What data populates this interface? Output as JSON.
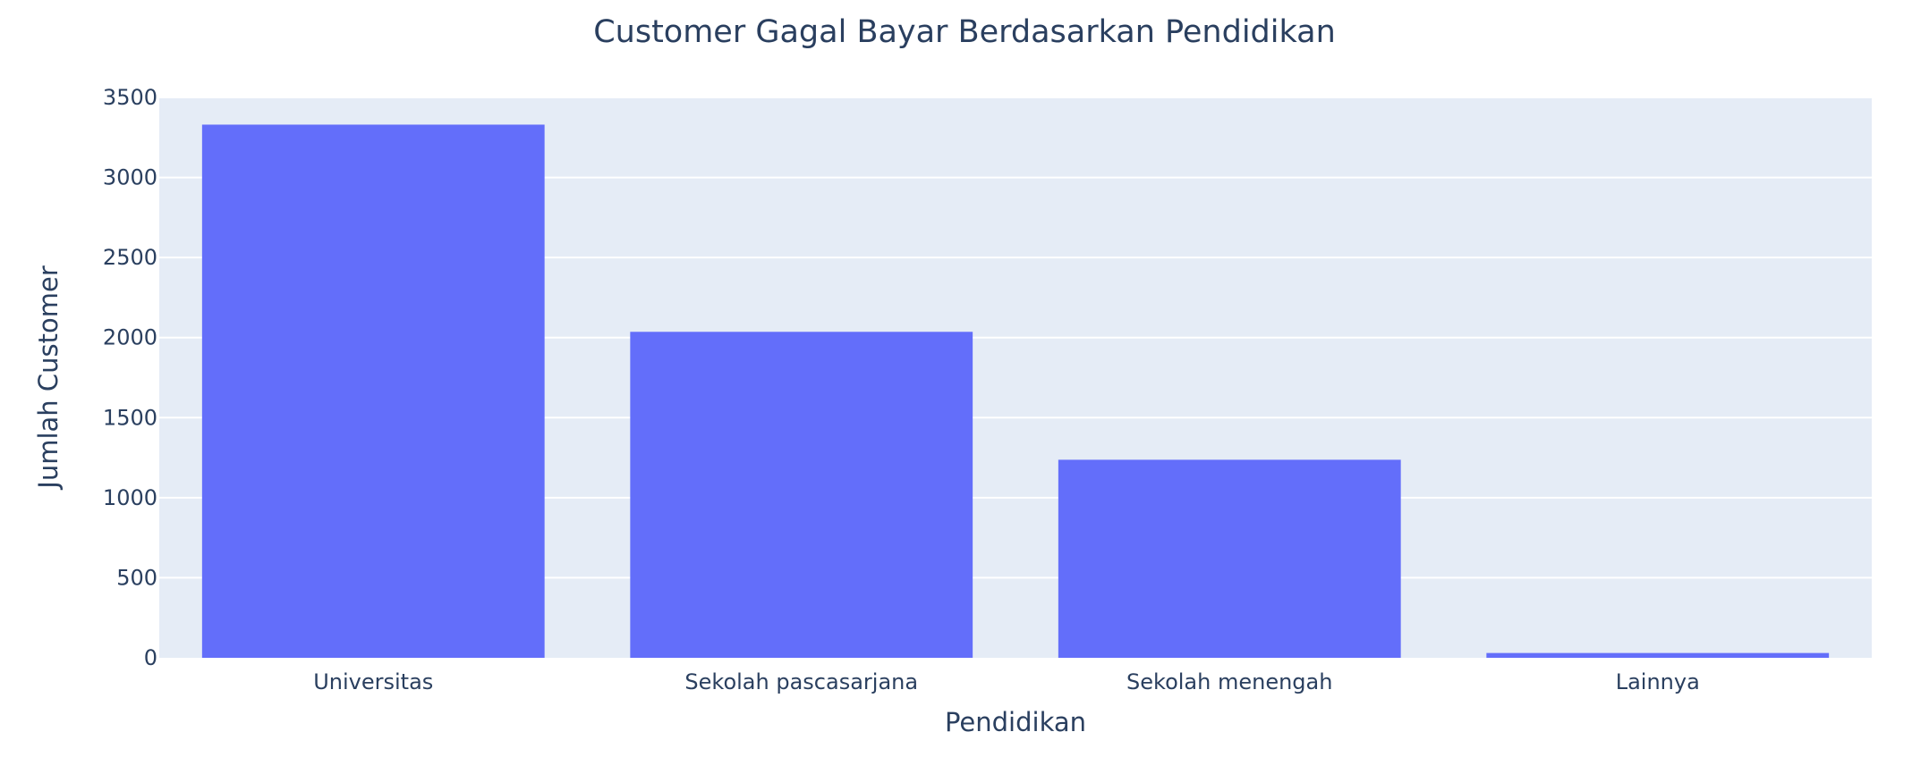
{
  "chart_data": {
    "type": "bar",
    "title": "Customer Gagal Bayar Berdasarkan Pendidikan",
    "xlabel": "Pendidikan",
    "ylabel": "Jumlah Customer",
    "categories": [
      "Universitas",
      "Sekolah pascasarjana",
      "Sekolah menengah",
      "Lainnya"
    ],
    "values": [
      3330,
      2036,
      1237,
      30
    ],
    "ylim": [
      0,
      3500
    ],
    "yticks": [
      0,
      500,
      1000,
      1500,
      2000,
      2500,
      3000,
      3500
    ],
    "grid": true,
    "colors": {
      "bar": "#636efa",
      "plot_bg": "#e5ecf6",
      "grid": "#ffffff",
      "text": "#2a3f5f"
    }
  }
}
